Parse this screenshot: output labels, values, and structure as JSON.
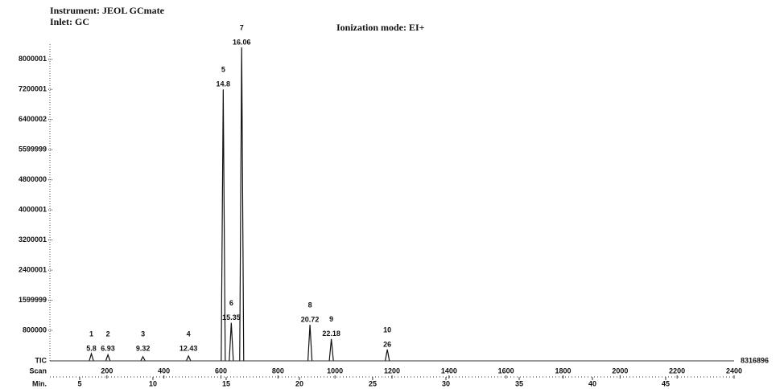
{
  "chart_data": {
    "type": "chromatogram",
    "instrument": "Instrument: JEOL GCmate",
    "inlet": "Inlet: GC",
    "ionization": "Ionization mode: EI+",
    "trace_label": "TIC",
    "x2_label": "Scan",
    "x_label": "Min.",
    "full_scale": 8316896,
    "x": [
      5.8,
      6.93,
      9.32,
      12.43,
      14.8,
      15.35,
      16.06,
      20.72,
      22.18,
      26
    ],
    "values": [
      180000,
      150000,
      100000,
      120000,
      7200000,
      1000000,
      8316896,
      950000,
      570000,
      290000
    ],
    "peak_labels": [
      1,
      2,
      3,
      4,
      5,
      6,
      7,
      8,
      9,
      10
    ],
    "color": "#111111",
    "xlim": [
      2.97,
      49.67
    ],
    "xticks": [
      5,
      10,
      15,
      20,
      25,
      30,
      35,
      40,
      45
    ],
    "x2lim": [
      0,
      2400
    ],
    "x2ticks": [
      200,
      400,
      600,
      800,
      1000,
      1200,
      1400,
      1600,
      1800,
      2000,
      2200,
      2400
    ],
    "ylim": [
      0,
      8316896
    ],
    "yticks": [
      800000,
      1599999,
      2400001,
      3200001,
      4000001,
      4800000,
      5599999,
      6400002,
      7200001,
      8000001
    ],
    "grid": false
  }
}
